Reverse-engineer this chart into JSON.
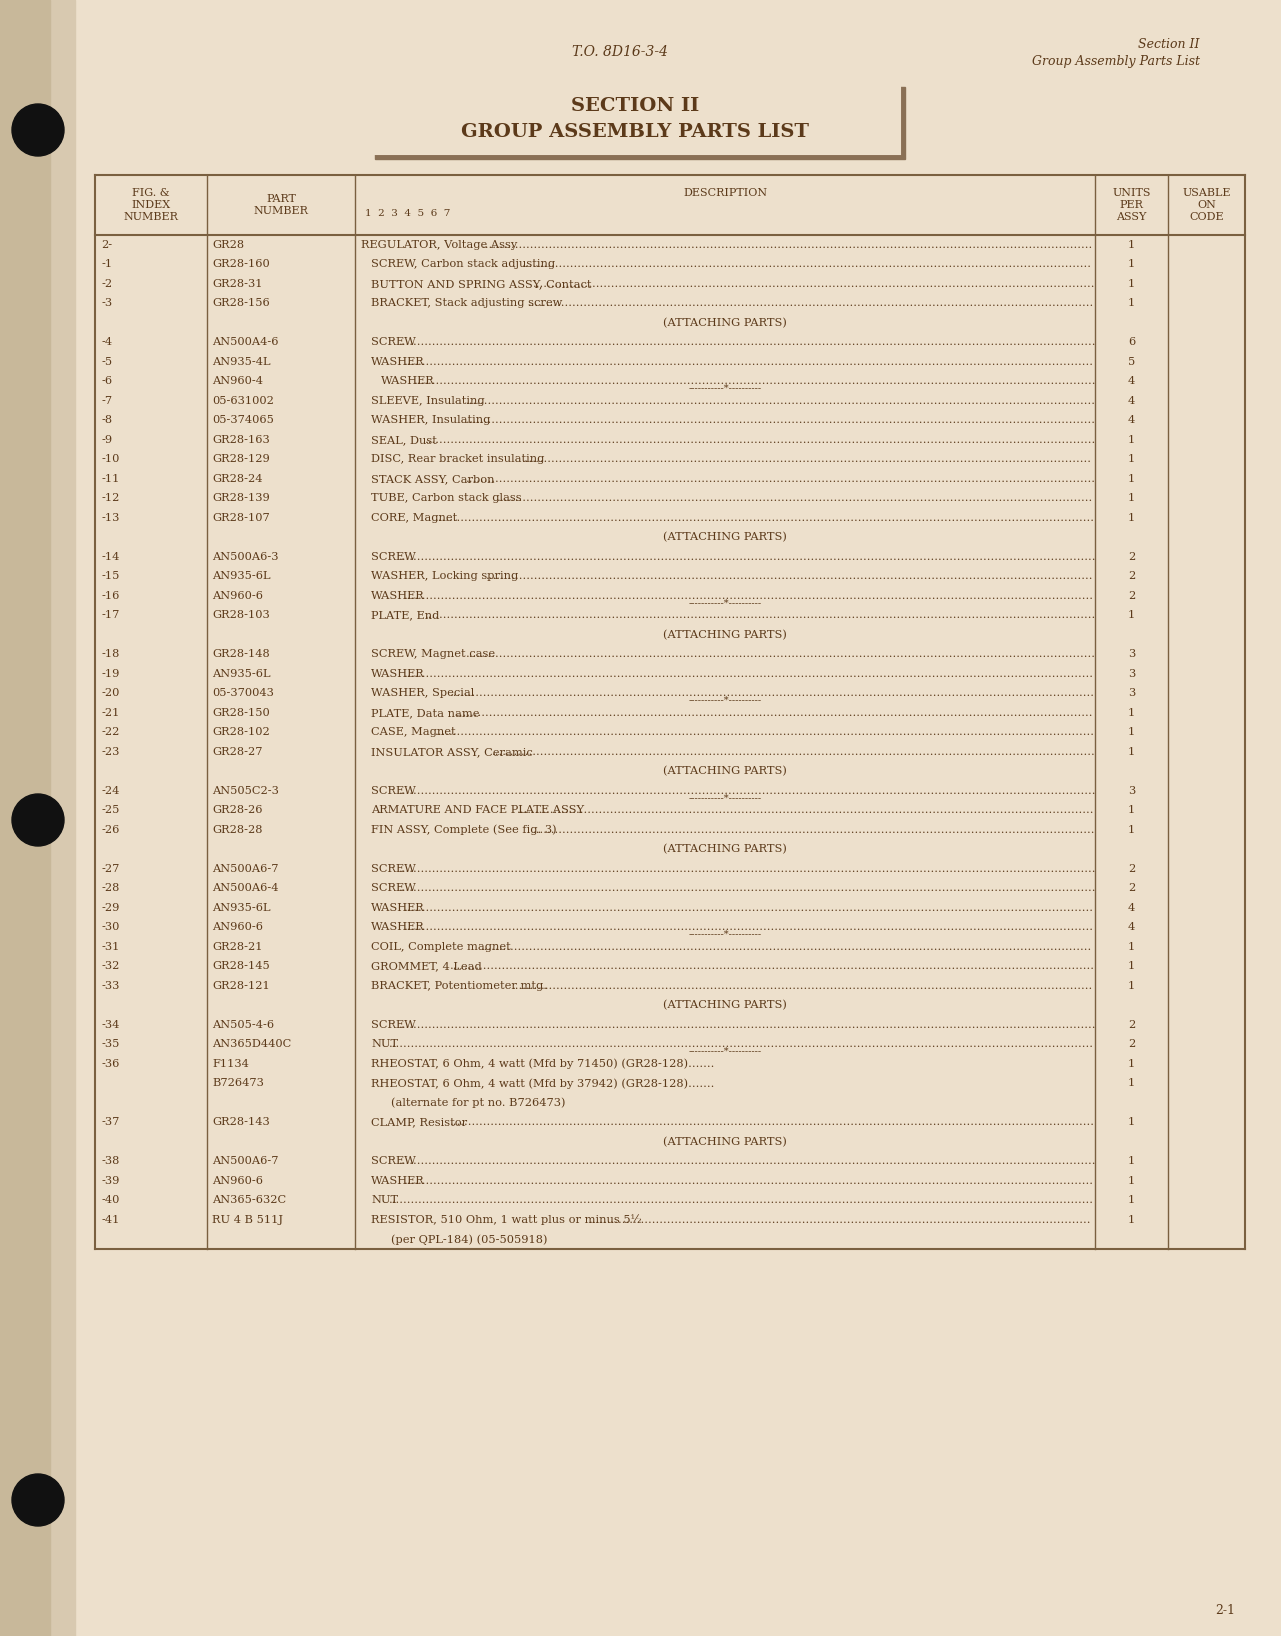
{
  "bg_color": "#ede0cc",
  "page_color": "#ede0cc",
  "text_color": "#5c3a1a",
  "border_color": "#7a6040",
  "title_top_left": "T.O. 8D16-3-4",
  "title_top_right_line1": "Section II",
  "title_top_right_line2": "Group Assembly Parts List",
  "section_title_line1": "SECTION II",
  "section_title_line2": "GROUP ASSEMBLY PARTS LIST",
  "col_subheader": "1  2  3  4  5  6  7",
  "rows": [
    {
      "fig": "2-",
      "part": "GR28",
      "indent": 0,
      "desc": "REGULATOR, Voltage Assy",
      "dots": true,
      "qty": "1",
      "sep": false,
      "attaching": false,
      "italic_desc": false
    },
    {
      "fig": "-1",
      "part": "GR28-160",
      "indent": 1,
      "desc": "SCREW, Carbon stack adjusting",
      "dots": true,
      "qty": "1",
      "sep": false,
      "attaching": false,
      "italic_desc": false
    },
    {
      "fig": "-2",
      "part": "GR28-31",
      "indent": 1,
      "desc": "BUTTON AND SPRING ASSY, Contact",
      "dots": true,
      "qty": "1",
      "sep": false,
      "attaching": false,
      "italic_desc": false
    },
    {
      "fig": "-3",
      "part": "GR28-156",
      "indent": 1,
      "desc": "BRACKET, Stack adjusting screw",
      "dots": true,
      "qty": "1",
      "sep": false,
      "attaching": false,
      "italic_desc": false
    },
    {
      "fig": "",
      "part": "",
      "indent": 0,
      "desc": "(ATTACHING PARTS)",
      "dots": false,
      "qty": "",
      "sep": false,
      "attaching": true,
      "italic_desc": false
    },
    {
      "fig": "-4",
      "part": "AN500A4-6",
      "indent": 1,
      "desc": "SCREW",
      "dots": true,
      "qty": "6",
      "sep": false,
      "attaching": false,
      "italic_desc": false
    },
    {
      "fig": "-5",
      "part": "AN935-4L",
      "indent": 1,
      "desc": "WASHER",
      "dots": true,
      "qty": "5",
      "sep": false,
      "attaching": false,
      "italic_desc": false
    },
    {
      "fig": "-6",
      "part": "AN960-4",
      "indent": 2,
      "desc": "WASHER",
      "dots": true,
      "qty": "4",
      "sep": true,
      "attaching": false,
      "italic_desc": false
    },
    {
      "fig": "-7",
      "part": "05-631002",
      "indent": 1,
      "desc": "SLEEVE, Insulating",
      "dots": true,
      "qty": "4",
      "sep": false,
      "attaching": false,
      "italic_desc": false
    },
    {
      "fig": "-8",
      "part": "05-374065",
      "indent": 1,
      "desc": "WASHER, Insulating",
      "dots": true,
      "qty": "4",
      "sep": false,
      "attaching": false,
      "italic_desc": false
    },
    {
      "fig": "-9",
      "part": "GR28-163",
      "indent": 1,
      "desc": "SEAL, Dust",
      "dots": true,
      "qty": "1",
      "sep": false,
      "attaching": false,
      "italic_desc": false
    },
    {
      "fig": "-10",
      "part": "GR28-129",
      "indent": 1,
      "desc": "DISC, Rear bracket insulating",
      "dots": true,
      "qty": "1",
      "sep": false,
      "attaching": false,
      "italic_desc": false
    },
    {
      "fig": "-11",
      "part": "GR28-24",
      "indent": 1,
      "desc": "STACK ASSY, Carbon",
      "dots": true,
      "qty": "1",
      "sep": false,
      "attaching": false,
      "italic_desc": false
    },
    {
      "fig": "-12",
      "part": "GR28-139",
      "indent": 1,
      "desc": "TUBE, Carbon stack glass",
      "dots": true,
      "qty": "1",
      "sep": false,
      "attaching": false,
      "italic_desc": false
    },
    {
      "fig": "-13",
      "part": "GR28-107",
      "indent": 1,
      "desc": "CORE, Magnet",
      "dots": true,
      "qty": "1",
      "sep": false,
      "attaching": false,
      "italic_desc": false
    },
    {
      "fig": "",
      "part": "",
      "indent": 0,
      "desc": "(ATTACHING PARTS)",
      "dots": false,
      "qty": "",
      "sep": false,
      "attaching": true,
      "italic_desc": false
    },
    {
      "fig": "-14",
      "part": "AN500A6-3",
      "indent": 1,
      "desc": "SCREW",
      "dots": true,
      "qty": "2",
      "sep": false,
      "attaching": false,
      "italic_desc": false
    },
    {
      "fig": "-15",
      "part": "AN935-6L",
      "indent": 1,
      "desc": "WASHER, Locking spring",
      "dots": true,
      "qty": "2",
      "sep": false,
      "attaching": false,
      "italic_desc": false
    },
    {
      "fig": "-16",
      "part": "AN960-6",
      "indent": 1,
      "desc": "WASHER",
      "dots": true,
      "qty": "2",
      "sep": true,
      "attaching": false,
      "italic_desc": false
    },
    {
      "fig": "-17",
      "part": "GR28-103",
      "indent": 1,
      "desc": "PLATE, End",
      "dots": true,
      "qty": "1",
      "sep": false,
      "attaching": false,
      "italic_desc": false
    },
    {
      "fig": "",
      "part": "",
      "indent": 0,
      "desc": "(ATTACHING PARTS)",
      "dots": false,
      "qty": "",
      "sep": false,
      "attaching": true,
      "italic_desc": false
    },
    {
      "fig": "-18",
      "part": "GR28-148",
      "indent": 1,
      "desc": "SCREW, Magnet case",
      "dots": true,
      "qty": "3",
      "sep": false,
      "attaching": false,
      "italic_desc": false
    },
    {
      "fig": "-19",
      "part": "AN935-6L",
      "indent": 1,
      "desc": "WASHER",
      "dots": true,
      "qty": "3",
      "sep": false,
      "attaching": false,
      "italic_desc": false
    },
    {
      "fig": "-20",
      "part": "05-370043",
      "indent": 1,
      "desc": "WASHER, Special",
      "dots": true,
      "qty": "3",
      "sep": true,
      "attaching": false,
      "italic_desc": false
    },
    {
      "fig": "-21",
      "part": "GR28-150",
      "indent": 1,
      "desc": "PLATE, Data name",
      "dots": true,
      "qty": "1",
      "sep": false,
      "attaching": false,
      "italic_desc": false
    },
    {
      "fig": "-22",
      "part": "GR28-102",
      "indent": 1,
      "desc": "CASE, Magnet",
      "dots": true,
      "qty": "1",
      "sep": false,
      "attaching": false,
      "italic_desc": false
    },
    {
      "fig": "-23",
      "part": "GR28-27",
      "indent": 1,
      "desc": "INSULATOR ASSY, Ceramic",
      "dots": true,
      "qty": "1",
      "sep": false,
      "attaching": false,
      "italic_desc": false
    },
    {
      "fig": "",
      "part": "",
      "indent": 0,
      "desc": "(ATTACHING PARTS)",
      "dots": false,
      "qty": "",
      "sep": false,
      "attaching": true,
      "italic_desc": false
    },
    {
      "fig": "-24",
      "part": "AN505C2-3",
      "indent": 1,
      "desc": "SCREW",
      "dots": true,
      "qty": "3",
      "sep": true,
      "attaching": false,
      "italic_desc": false
    },
    {
      "fig": "-25",
      "part": "GR28-26",
      "indent": 1,
      "desc": "ARMATURE AND FACE PLATE ASSY",
      "dots": true,
      "qty": "1",
      "sep": false,
      "attaching": false,
      "italic_desc": false
    },
    {
      "fig": "-26",
      "part": "GR28-28",
      "indent": 1,
      "desc": "FIN ASSY, Complete (See fig. 3)",
      "dots": true,
      "qty": "1",
      "sep": false,
      "attaching": false,
      "italic_desc": false
    },
    {
      "fig": "",
      "part": "",
      "indent": 0,
      "desc": "(ATTACHING PARTS)",
      "dots": false,
      "qty": "",
      "sep": false,
      "attaching": true,
      "italic_desc": false
    },
    {
      "fig": "-27",
      "part": "AN500A6-7",
      "indent": 1,
      "desc": "SCREW",
      "dots": true,
      "qty": "2",
      "sep": false,
      "attaching": false,
      "italic_desc": false
    },
    {
      "fig": "-28",
      "part": "AN500A6-4",
      "indent": 1,
      "desc": "SCREW",
      "dots": true,
      "qty": "2",
      "sep": false,
      "attaching": false,
      "italic_desc": false
    },
    {
      "fig": "-29",
      "part": "AN935-6L",
      "indent": 1,
      "desc": "WASHER",
      "dots": true,
      "qty": "4",
      "sep": false,
      "attaching": false,
      "italic_desc": false
    },
    {
      "fig": "-30",
      "part": "AN960-6",
      "indent": 1,
      "desc": "WASHER",
      "dots": true,
      "qty": "4",
      "sep": true,
      "attaching": false,
      "italic_desc": false
    },
    {
      "fig": "-31",
      "part": "GR28-21",
      "indent": 1,
      "desc": "COIL, Complete magnet",
      "dots": true,
      "qty": "1",
      "sep": false,
      "attaching": false,
      "italic_desc": false
    },
    {
      "fig": "-32",
      "part": "GR28-145",
      "indent": 1,
      "desc": "GROMMET, 4 Lead",
      "dots": true,
      "qty": "1",
      "sep": false,
      "attaching": false,
      "italic_desc": false
    },
    {
      "fig": "-33",
      "part": "GR28-121",
      "indent": 1,
      "desc": "BRACKET, Potentiometer mtg.",
      "dots": true,
      "qty": "1",
      "sep": false,
      "attaching": false,
      "italic_desc": false
    },
    {
      "fig": "",
      "part": "",
      "indent": 0,
      "desc": "(ATTACHING PARTS)",
      "dots": false,
      "qty": "",
      "sep": false,
      "attaching": true,
      "italic_desc": false
    },
    {
      "fig": "-34",
      "part": "AN505-4-6",
      "indent": 1,
      "desc": "SCREW",
      "dots": true,
      "qty": "2",
      "sep": false,
      "attaching": false,
      "italic_desc": false
    },
    {
      "fig": "-35",
      "part": "AN365D440C",
      "indent": 1,
      "desc": "NUT",
      "dots": true,
      "qty": "2",
      "sep": true,
      "attaching": false,
      "italic_desc": false
    },
    {
      "fig": "-36",
      "part": "F1134",
      "indent": 1,
      "desc": "RHEOSTAT, 6 Ohm, 4 watt (Mfd by 71450) (GR28-128).......",
      "dots": false,
      "qty": "1",
      "sep": false,
      "attaching": false,
      "italic_desc": false
    },
    {
      "fig": "",
      "part": "B726473",
      "indent": 1,
      "desc": "RHEOSTAT, 6 Ohm, 4 watt (Mfd by 37942) (GR28-128).......",
      "dots": false,
      "qty": "1",
      "sep": false,
      "attaching": false,
      "italic_desc": false
    },
    {
      "fig": "",
      "part": "",
      "indent": 3,
      "desc": "(alternate for pt no. B726473)",
      "dots": false,
      "qty": "",
      "sep": false,
      "attaching": false,
      "italic_desc": false
    },
    {
      "fig": "-37",
      "part": "GR28-143",
      "indent": 1,
      "desc": "CLAMP, Resistor",
      "dots": true,
      "qty": "1",
      "sep": false,
      "attaching": false,
      "italic_desc": false
    },
    {
      "fig": "",
      "part": "",
      "indent": 0,
      "desc": "(ATTACHING PARTS)",
      "dots": false,
      "qty": "",
      "sep": false,
      "attaching": true,
      "italic_desc": false
    },
    {
      "fig": "-38",
      "part": "AN500A6-7",
      "indent": 1,
      "desc": "SCREW",
      "dots": true,
      "qty": "1",
      "sep": false,
      "attaching": false,
      "italic_desc": false
    },
    {
      "fig": "-39",
      "part": "AN960-6",
      "indent": 1,
      "desc": "WASHER",
      "dots": true,
      "qty": "1",
      "sep": false,
      "attaching": false,
      "italic_desc": false
    },
    {
      "fig": "-40",
      "part": "AN365-632C",
      "indent": 1,
      "desc": "NUT",
      "dots": true,
      "qty": "1",
      "sep": false,
      "attaching": false,
      "italic_desc": false
    },
    {
      "fig": "-41",
      "part": "RU 4 B 511J",
      "indent": 1,
      "desc": "RESISTOR, 510 Ohm, 1 watt plus or minus 5½",
      "dots": true,
      "qty": "1",
      "sep": false,
      "attaching": false,
      "italic_desc": false
    },
    {
      "fig": "",
      "part": "",
      "indent": 3,
      "desc": "(per QPL-184) (05-505918)",
      "dots": false,
      "qty": "",
      "sep": false,
      "attaching": false,
      "italic_desc": false
    }
  ],
  "page_num": "2-1"
}
